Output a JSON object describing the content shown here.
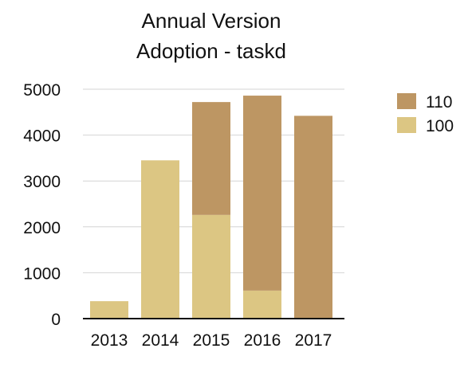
{
  "chart_data": {
    "type": "bar",
    "stacked": true,
    "title": [
      "Annual Version",
      "Adoption - taskd"
    ],
    "xlabel": "",
    "ylabel": "",
    "categories": [
      "2013",
      "2014",
      "2015",
      "2016",
      "2017"
    ],
    "series": [
      {
        "name": "100",
        "color": "#dcc683",
        "values": [
          380,
          3450,
          2260,
          610,
          0
        ]
      },
      {
        "name": "110",
        "color": "#bd9663",
        "values": [
          0,
          0,
          2460,
          4250,
          4420
        ]
      }
    ],
    "ylim": [
      0,
      5000
    ],
    "yticks": [
      0,
      1000,
      2000,
      3000,
      4000,
      5000
    ],
    "grid": true,
    "legend": {
      "position": "top-right",
      "order": [
        "110",
        "100"
      ]
    }
  }
}
